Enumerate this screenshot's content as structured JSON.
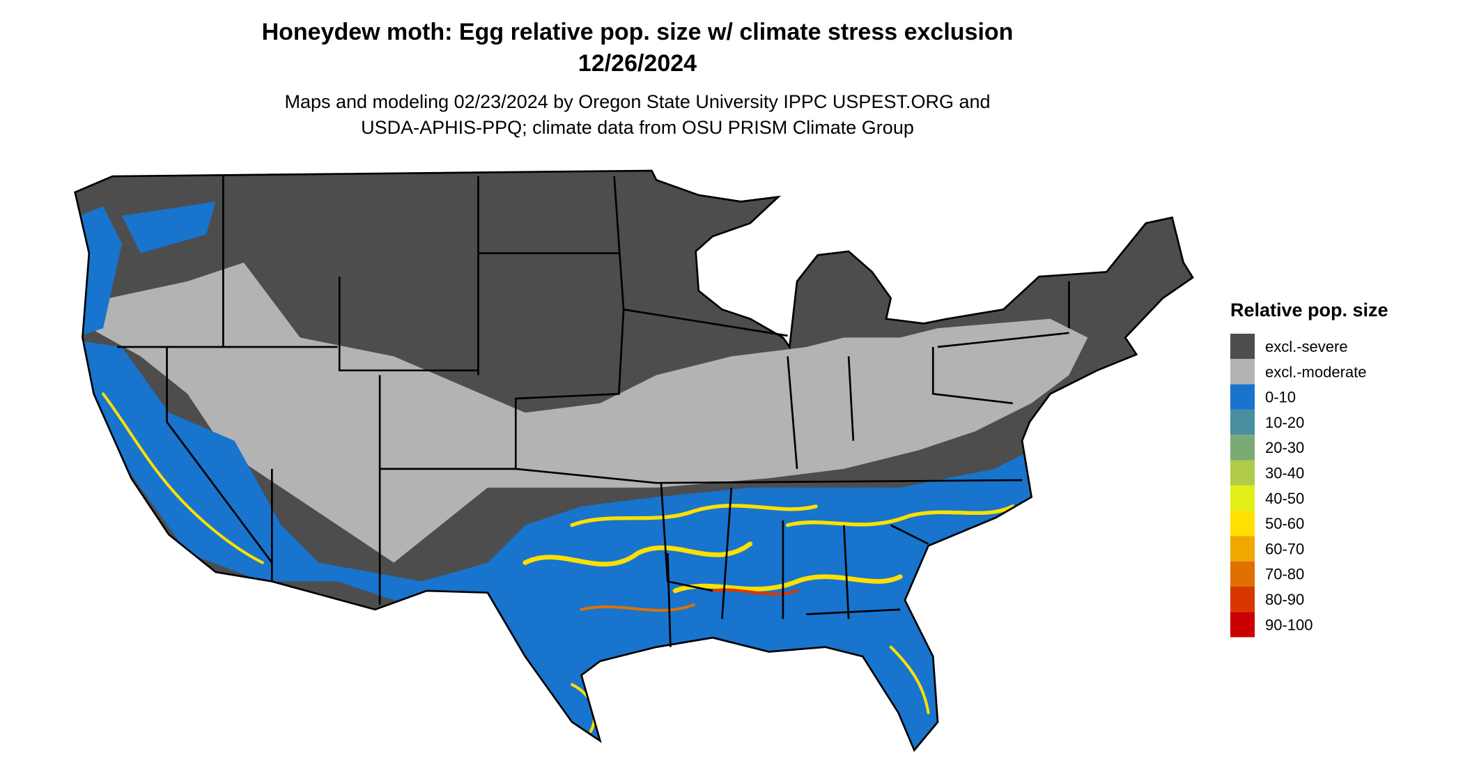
{
  "header": {
    "title": "Honeydew moth: Egg relative pop. size w/ climate stress exclusion",
    "date": "12/26/2024",
    "subtitle_lines": [
      "Maps and modeling 02/23/2024 by Oregon State University IPPC USPEST.ORG and",
      "USDA-APHIS-PPQ; climate data from OSU PRISM Climate Group"
    ]
  },
  "legend": {
    "title": "Relative pop. size",
    "items": [
      {
        "label": "excl.-severe",
        "color": "#4d4d4d"
      },
      {
        "label": "excl.-moderate",
        "color": "#b3b3b3"
      },
      {
        "label": "0-10",
        "color": "#1874cd"
      },
      {
        "label": "10-20",
        "color": "#4a8fa0"
      },
      {
        "label": "20-30",
        "color": "#7bab74"
      },
      {
        "label": "30-40",
        "color": "#b0cc48"
      },
      {
        "label": "40-50",
        "color": "#e2ee18"
      },
      {
        "label": "50-60",
        "color": "#ffe000"
      },
      {
        "label": "60-70",
        "color": "#f0a800"
      },
      {
        "label": "70-80",
        "color": "#e07000"
      },
      {
        "label": "80-90",
        "color": "#d83800"
      },
      {
        "label": "90-100",
        "color": "#cc0000"
      }
    ]
  }
}
